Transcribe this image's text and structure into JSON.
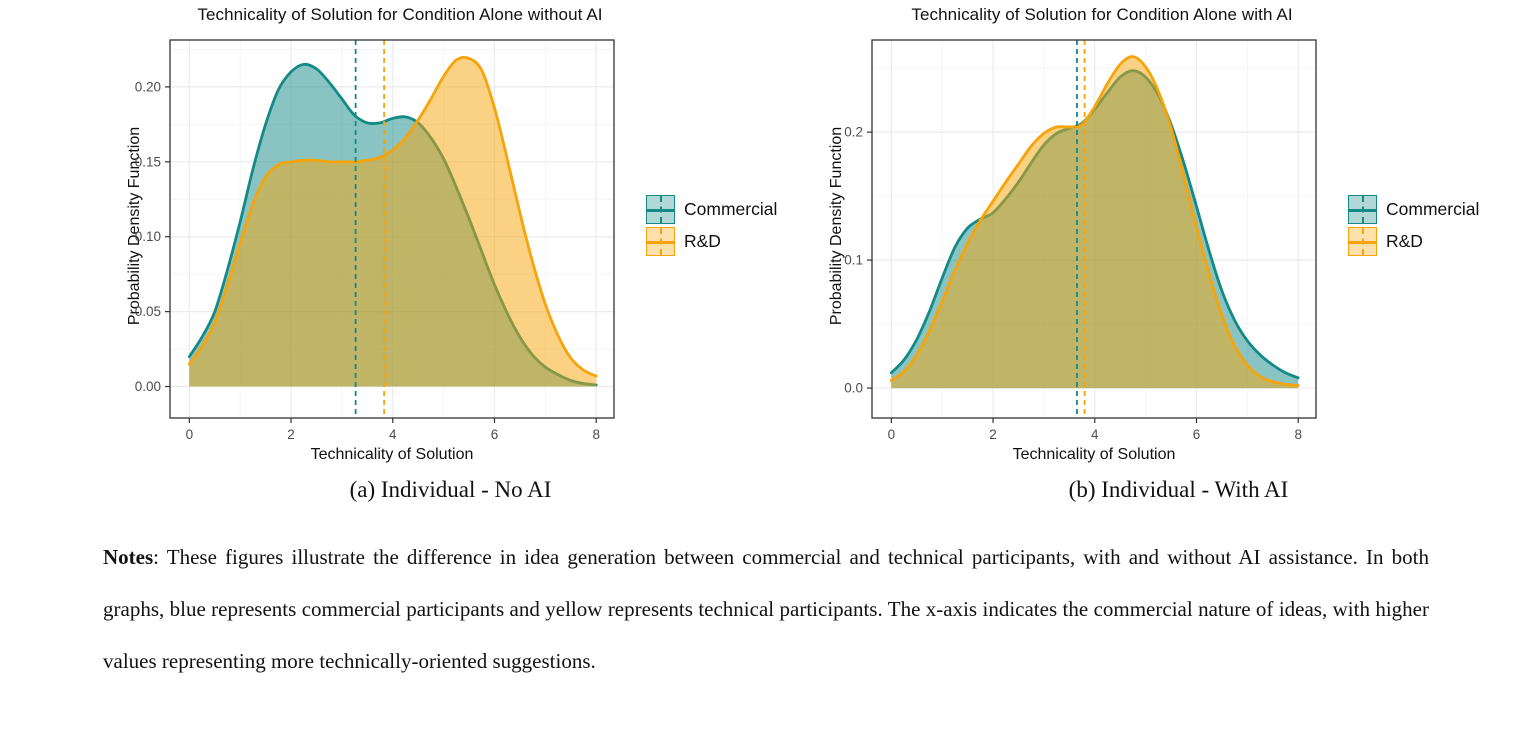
{
  "page": {
    "captions": [
      "(a) Individual - No AI",
      "(b) Individual - With AI"
    ],
    "notes_label": "Notes",
    "notes_text": ": These figures illustrate the difference in idea generation between commercial and technical participants, with and without AI assistance. In both graphs, blue represents commercial participants and yellow represents technical participants. The x-axis indicates the commercial nature of ideas, with higher values representing more technically-oriented suggestions."
  },
  "colors": {
    "commercial": "#148A86",
    "rd": "#F7A40A",
    "fill_opacity": 0.5,
    "tick_label": "#4D4D4D",
    "grid_major": "#EBEBEB",
    "grid_minor": "#F5F5F5",
    "panel_border": "#333333"
  },
  "chart_data": [
    {
      "type": "area",
      "title": "Technicality of Solution for Condition Alone without AI",
      "xlabel": "Technicality of Solution",
      "ylabel": "Probability Density Function",
      "legend_position": "right",
      "grid": true,
      "xticks": [
        0,
        2,
        4,
        6,
        8
      ],
      "yticks": [
        0,
        0.05,
        0.1,
        0.15,
        0.2
      ],
      "ytick_labels": [
        "0.00",
        "0.05",
        "0.10",
        "0.15",
        "0.20"
      ],
      "xrange": [
        -0.38,
        8.35
      ],
      "yrange": [
        -0.021,
        0.2313
      ],
      "series": [
        {
          "name": "Commercial",
          "color": "#148A86",
          "mean_line": 3.27,
          "points": [
            [
              0,
              0.02
            ],
            [
              0.25,
              0.033
            ],
            [
              0.5,
              0.05
            ],
            [
              0.75,
              0.078
            ],
            [
              1,
              0.11
            ],
            [
              1.25,
              0.145
            ],
            [
              1.5,
              0.175
            ],
            [
              1.75,
              0.198
            ],
            [
              2,
              0.21
            ],
            [
              2.25,
              0.215
            ],
            [
              2.5,
              0.212
            ],
            [
              2.75,
              0.203
            ],
            [
              3,
              0.192
            ],
            [
              3.25,
              0.181
            ],
            [
              3.5,
              0.176
            ],
            [
              3.75,
              0.176
            ],
            [
              4,
              0.179
            ],
            [
              4.25,
              0.18
            ],
            [
              4.5,
              0.176
            ],
            [
              4.75,
              0.166
            ],
            [
              5,
              0.152
            ],
            [
              5.25,
              0.133
            ],
            [
              5.5,
              0.112
            ],
            [
              5.75,
              0.09
            ],
            [
              6,
              0.068
            ],
            [
              6.25,
              0.049
            ],
            [
              6.5,
              0.033
            ],
            [
              6.75,
              0.021
            ],
            [
              7,
              0.013
            ],
            [
              7.25,
              0.008
            ],
            [
              7.5,
              0.004
            ],
            [
              7.75,
              0.002
            ],
            [
              8,
              0.001
            ]
          ]
        },
        {
          "name": "R&D",
          "color": "#F7A40A",
          "mean_line": 3.83,
          "points": [
            [
              0,
              0.015
            ],
            [
              0.25,
              0.027
            ],
            [
              0.5,
              0.043
            ],
            [
              0.75,
              0.068
            ],
            [
              1,
              0.096
            ],
            [
              1.25,
              0.122
            ],
            [
              1.5,
              0.14
            ],
            [
              1.75,
              0.148
            ],
            [
              2,
              0.15
            ],
            [
              2.25,
              0.151
            ],
            [
              2.5,
              0.151
            ],
            [
              2.75,
              0.15
            ],
            [
              3,
              0.15
            ],
            [
              3.25,
              0.15
            ],
            [
              3.5,
              0.151
            ],
            [
              3.75,
              0.153
            ],
            [
              4,
              0.158
            ],
            [
              4.25,
              0.166
            ],
            [
              4.5,
              0.178
            ],
            [
              4.75,
              0.192
            ],
            [
              5,
              0.207
            ],
            [
              5.25,
              0.218
            ],
            [
              5.5,
              0.219
            ],
            [
              5.75,
              0.211
            ],
            [
              6,
              0.186
            ],
            [
              6.25,
              0.152
            ],
            [
              6.5,
              0.116
            ],
            [
              6.75,
              0.083
            ],
            [
              7,
              0.055
            ],
            [
              7.25,
              0.034
            ],
            [
              7.5,
              0.019
            ],
            [
              7.75,
              0.011
            ],
            [
              8,
              0.007
            ]
          ]
        }
      ]
    },
    {
      "type": "area",
      "title": "Technicality of Solution for Condition Alone with AI",
      "xlabel": "Technicality of Solution",
      "ylabel": "Probability Density Function",
      "legend_position": "right",
      "grid": true,
      "xticks": [
        0,
        2,
        4,
        6,
        8
      ],
      "yticks": [
        0,
        0.1,
        0.2
      ],
      "ytick_labels": [
        "0.0",
        "0.1",
        "0.2"
      ],
      "xrange": [
        -0.38,
        8.35
      ],
      "yrange": [
        -0.0234,
        0.272
      ],
      "series": [
        {
          "name": "Commercial",
          "color": "#148A86",
          "mean_line": 3.65,
          "points": [
            [
              0,
              0.012
            ],
            [
              0.25,
              0.022
            ],
            [
              0.5,
              0.038
            ],
            [
              0.75,
              0.06
            ],
            [
              1,
              0.086
            ],
            [
              1.25,
              0.11
            ],
            [
              1.5,
              0.125
            ],
            [
              1.75,
              0.132
            ],
            [
              2,
              0.137
            ],
            [
              2.25,
              0.148
            ],
            [
              2.5,
              0.161
            ],
            [
              2.75,
              0.176
            ],
            [
              3,
              0.19
            ],
            [
              3.25,
              0.199
            ],
            [
              3.5,
              0.203
            ],
            [
              3.75,
              0.207
            ],
            [
              4,
              0.218
            ],
            [
              4.25,
              0.231
            ],
            [
              4.5,
              0.243
            ],
            [
              4.75,
              0.248
            ],
            [
              5,
              0.243
            ],
            [
              5.25,
              0.229
            ],
            [
              5.5,
              0.206
            ],
            [
              5.75,
              0.176
            ],
            [
              6,
              0.142
            ],
            [
              6.25,
              0.107
            ],
            [
              6.5,
              0.076
            ],
            [
              6.75,
              0.053
            ],
            [
              7,
              0.037
            ],
            [
              7.25,
              0.026
            ],
            [
              7.5,
              0.018
            ],
            [
              7.75,
              0.012
            ],
            [
              8,
              0.008
            ]
          ]
        },
        {
          "name": "R&D",
          "color": "#F7A40A",
          "mean_line": 3.8,
          "points": [
            [
              0,
              0.006
            ],
            [
              0.25,
              0.013
            ],
            [
              0.5,
              0.026
            ],
            [
              0.75,
              0.045
            ],
            [
              1,
              0.068
            ],
            [
              1.25,
              0.092
            ],
            [
              1.5,
              0.113
            ],
            [
              1.75,
              0.131
            ],
            [
              2,
              0.146
            ],
            [
              2.25,
              0.161
            ],
            [
              2.5,
              0.175
            ],
            [
              2.75,
              0.189
            ],
            [
              3,
              0.199
            ],
            [
              3.25,
              0.204
            ],
            [
              3.5,
              0.204
            ],
            [
              3.75,
              0.206
            ],
            [
              4,
              0.22
            ],
            [
              4.25,
              0.238
            ],
            [
              4.5,
              0.253
            ],
            [
              4.75,
              0.259
            ],
            [
              5,
              0.251
            ],
            [
              5.25,
              0.232
            ],
            [
              5.5,
              0.203
            ],
            [
              5.75,
              0.166
            ],
            [
              6,
              0.126
            ],
            [
              6.25,
              0.089
            ],
            [
              6.5,
              0.057
            ],
            [
              6.75,
              0.033
            ],
            [
              7,
              0.018
            ],
            [
              7.25,
              0.009
            ],
            [
              7.5,
              0.005
            ],
            [
              7.75,
              0.003
            ],
            [
              8,
              0.002
            ]
          ]
        }
      ]
    }
  ]
}
